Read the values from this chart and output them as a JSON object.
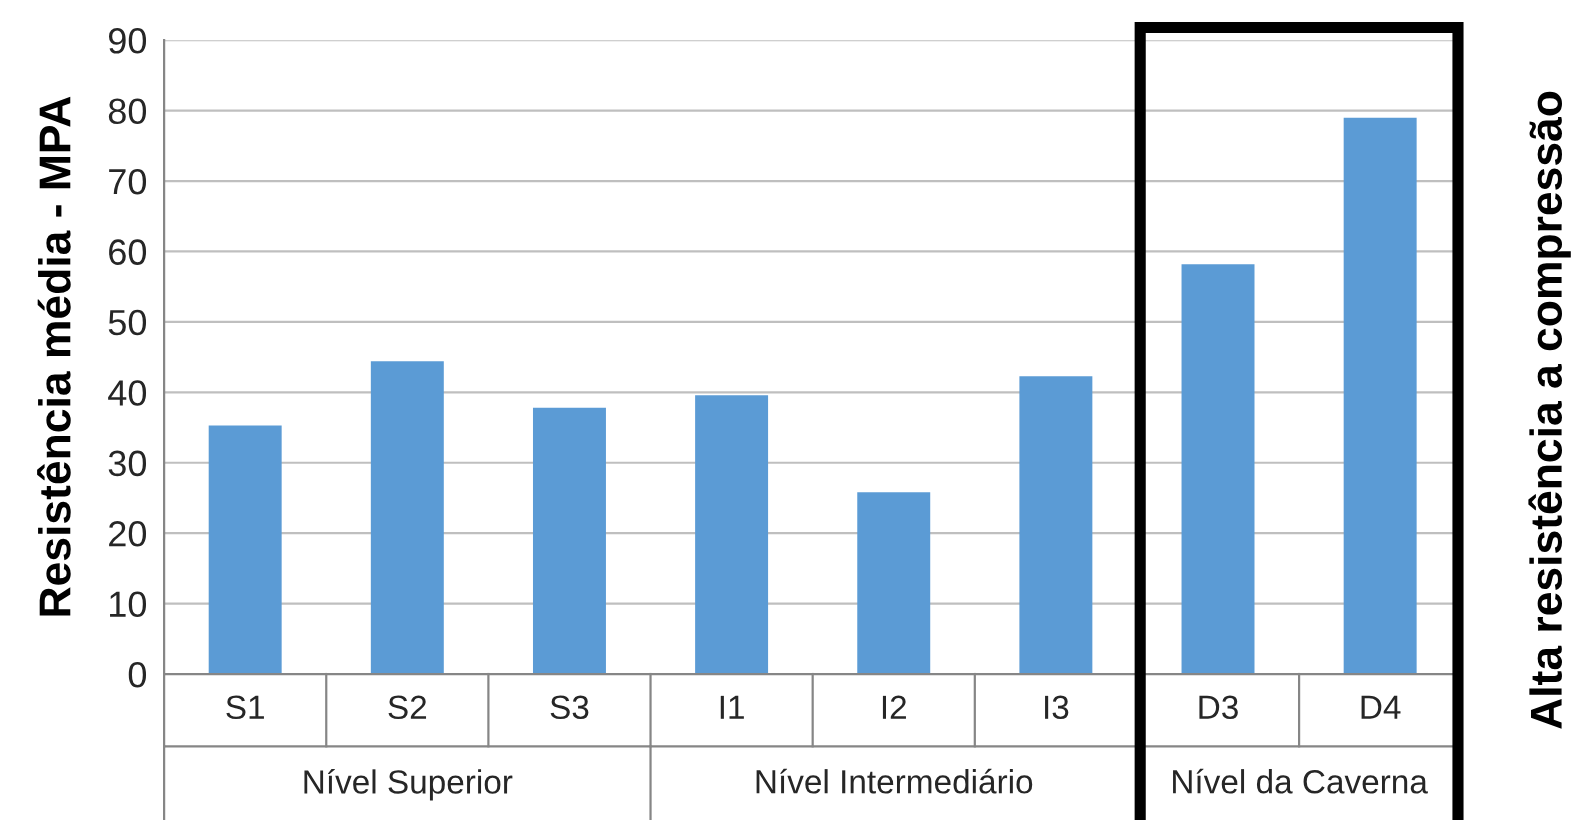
{
  "chart_data": {
    "type": "bar",
    "ylabel": "Resistência média - MPA",
    "categories": [
      "S1",
      "S2",
      "S3",
      "I1",
      "I2",
      "I3",
      "D3",
      "D4"
    ],
    "values": [
      35.3,
      44.4,
      37.8,
      39.6,
      25.8,
      42.3,
      58.2,
      79.0
    ],
    "color": "#5b9bd5",
    "ylim": [
      0,
      90
    ],
    "yticks": [
      0,
      10,
      20,
      30,
      40,
      50,
      60,
      70,
      80,
      90
    ],
    "grid": "y",
    "annotations": [
      "Nível Superior",
      "Nível Intermediário",
      "Nível da Caverna",
      "Alta resistência a compressão"
    ]
  }
}
